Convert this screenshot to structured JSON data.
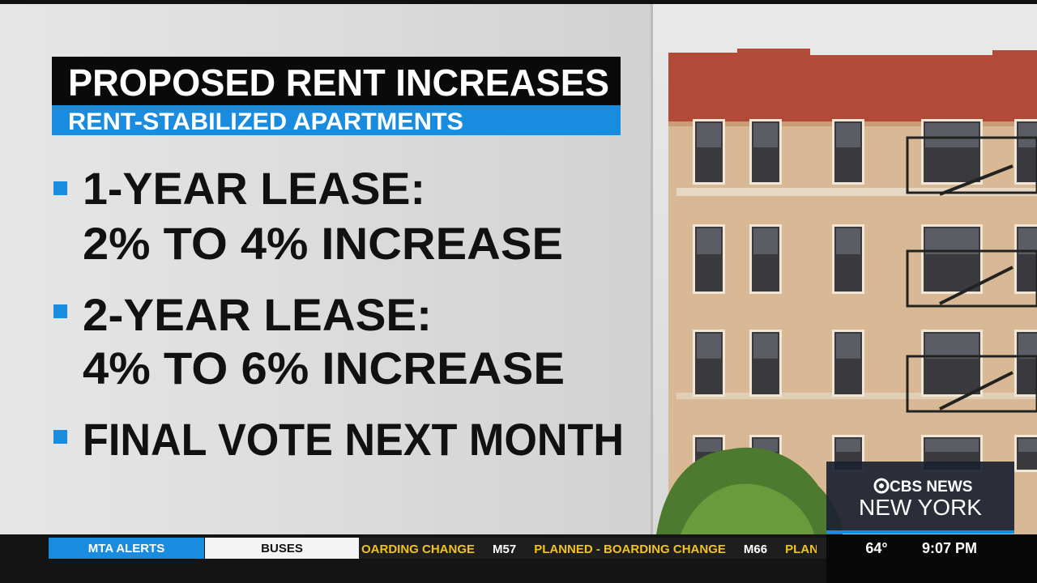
{
  "header": {
    "title": "PROPOSED RENT INCREASES",
    "subtitle": "RENT-STABILIZED APARTMENTS"
  },
  "bullets": [
    {
      "lines": [
        "1-YEAR LEASE:",
        "2% TO 4% INCREASE"
      ]
    },
    {
      "lines": [
        "2-YEAR LEASE:",
        "4% TO 6% INCREASE"
      ]
    },
    {
      "lines": [
        "FINAL VOTE NEXT MONTH"
      ]
    }
  ],
  "logo": {
    "brand": "CBS NEWS",
    "station": "NEW YORK"
  },
  "ticker": {
    "tabs": [
      "MTA ALERTS",
      "BUSES"
    ],
    "crawl": [
      "OARDING CHANGE",
      "M57",
      "PLANNED - BOARDING CHANGE",
      "M66",
      "PLAN"
    ],
    "temperature": "64°",
    "time": "9:07 PM"
  }
}
